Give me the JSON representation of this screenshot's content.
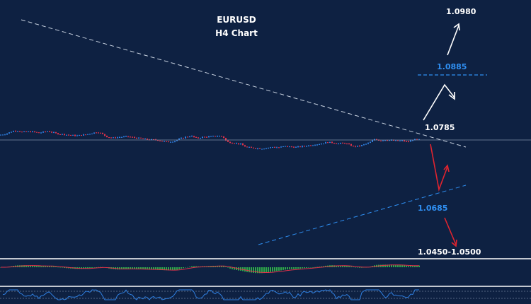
{
  "chart_data": {
    "type": "candlestick",
    "title": "EURUSD",
    "subtitle": "H4 Chart",
    "colors": {
      "background": "#0e2142",
      "bull": "#2f7fe0",
      "bear": "#e0324a",
      "trendline": "#c8d2e0",
      "support_line": "#2f8ff2",
      "horizontal": "#9aa9c0",
      "arrow_bull": "#ffffff",
      "arrow_bear": "#e0242f",
      "histogram": "#2ea84a",
      "signal": "#e0324a",
      "oscillator": "#2f7fe0"
    },
    "price_path": [
      [
        0,
        1.0842
      ],
      [
        8,
        1.0856
      ],
      [
        18,
        1.0895
      ],
      [
        24,
        1.0903
      ],
      [
        32,
        1.0882
      ],
      [
        45,
        1.0888
      ],
      [
        55,
        1.087
      ],
      [
        68,
        1.0895
      ],
      [
        80,
        1.086
      ],
      [
        93,
        1.0845
      ],
      [
        108,
        1.083
      ],
      [
        122,
        1.0848
      ],
      [
        138,
        1.0885
      ],
      [
        145,
        1.085
      ],
      [
        152,
        1.081
      ],
      [
        160,
        1.08
      ],
      [
        170,
        1.0812
      ],
      [
        180,
        1.0818
      ],
      [
        190,
        1.0802
      ],
      [
        200,
        1.079
      ],
      [
        210,
        1.0775
      ],
      [
        222,
        1.077
      ],
      [
        235,
        1.0742
      ],
      [
        245,
        1.0752
      ],
      [
        255,
        1.079
      ],
      [
        262,
        1.0812
      ],
      [
        270,
        1.0828
      ],
      [
        278,
        1.0792
      ],
      [
        285,
        1.081
      ],
      [
        293,
        1.0815
      ],
      [
        302,
        1.0822
      ],
      [
        308,
        1.0828
      ],
      [
        315,
        1.0818
      ],
      [
        318,
        1.077
      ],
      [
        322,
        1.074
      ],
      [
        330,
        1.073
      ],
      [
        340,
        1.071
      ],
      [
        348,
        1.0668
      ],
      [
        355,
        1.066
      ],
      [
        362,
        1.0652
      ],
      [
        370,
        1.065
      ],
      [
        378,
        1.0658
      ],
      [
        386,
        1.0672
      ],
      [
        394,
        1.0664
      ],
      [
        402,
        1.068
      ],
      [
        410,
        1.0674
      ],
      [
        418,
        1.0668
      ],
      [
        426,
        1.0678
      ],
      [
        434,
        1.069
      ],
      [
        444,
        1.0705
      ],
      [
        454,
        1.0718
      ],
      [
        462,
        1.0738
      ],
      [
        470,
        1.0732
      ],
      [
        478,
        1.0718
      ],
      [
        486,
        1.0728
      ],
      [
        494,
        1.07
      ],
      [
        500,
        1.0678
      ],
      [
        507,
        1.0683
      ],
      [
        514,
        1.0705
      ],
      [
        522,
        1.0732
      ],
      [
        530,
        1.079
      ],
      [
        536,
        1.076
      ],
      [
        544,
        1.0772
      ],
      [
        552,
        1.0766
      ],
      [
        560,
        1.0758
      ],
      [
        568,
        1.076
      ],
      [
        576,
        1.0742
      ],
      [
        582,
        1.0772
      ],
      [
        588,
        1.0778
      ],
      [
        594,
        1.0774
      ]
    ],
    "current_price": 1.077,
    "levels": [
      {
        "label": "1.0980",
        "price": 1.098,
        "style": "text",
        "color": "white"
      },
      {
        "label": "1.0885",
        "price": 1.0885,
        "style": "dashed",
        "color": "blue"
      },
      {
        "label": "1.0785",
        "price": 1.0785,
        "style": "text",
        "color": "white"
      },
      {
        "label": "1.0685",
        "price": 1.0685,
        "style": "text",
        "color": "blue"
      },
      {
        "label": "1.0450-1.0500",
        "price": 1.05,
        "style": "text",
        "color": "white"
      }
    ],
    "indicator_panels": [
      "MACD",
      "oscillator"
    ]
  }
}
